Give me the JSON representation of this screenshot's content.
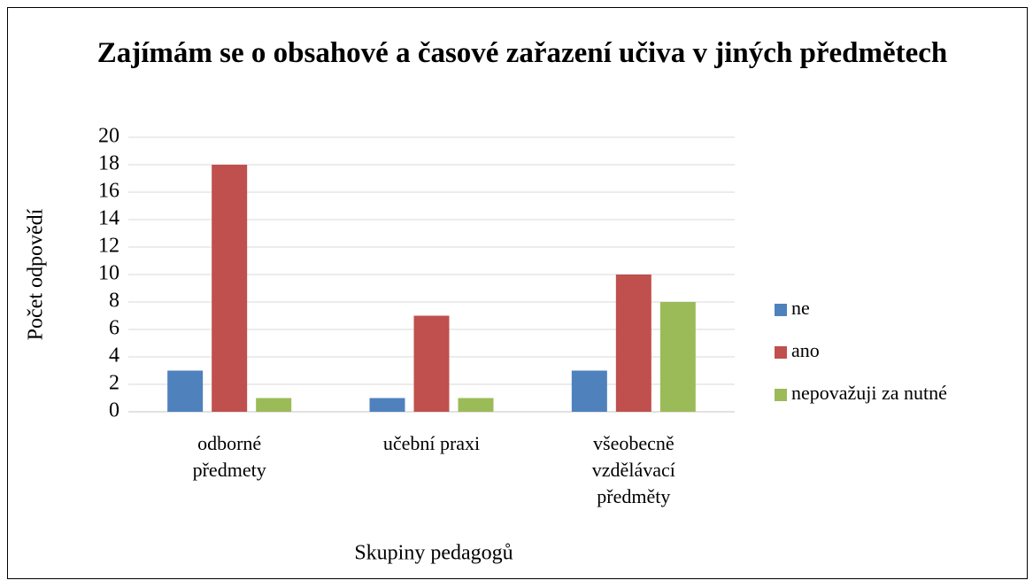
{
  "chart_data": {
    "type": "bar",
    "title": "Zajímám se o obsahové a časové zařazení učiva v jiných předmětech",
    "x_label": "Skupiny pedagogů",
    "y_label": "Počet odpovědí",
    "categories": [
      "odborné předmety",
      "učební praxi",
      "všeobecně vzdělávací předměty"
    ],
    "series": [
      {
        "name": "ne",
        "color": "#4f81bd",
        "values": [
          3,
          1,
          3
        ]
      },
      {
        "name": "ano",
        "color": "#c0504d",
        "values": [
          18,
          7,
          10
        ]
      },
      {
        "name": "nepovažuji za nutné",
        "color": "#9bbb59",
        "values": [
          1,
          1,
          8
        ]
      }
    ],
    "ylim": [
      0,
      20
    ],
    "yticks": [
      0,
      2,
      4,
      6,
      8,
      10,
      12,
      14,
      16,
      18,
      20
    ],
    "grid": true,
    "legend": "right"
  }
}
